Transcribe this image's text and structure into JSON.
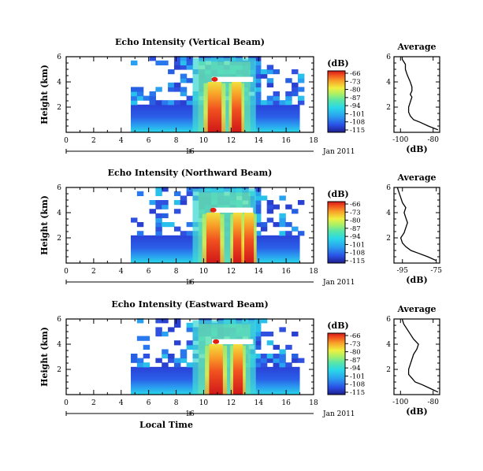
{
  "chart_data": [
    {
      "type": "heatmap",
      "title": "Echo Intensity (Vertical Beam)",
      "ylabel": "Height (km)",
      "x_ticks": [
        0,
        2,
        4,
        6,
        8,
        10,
        12,
        14,
        16,
        18
      ],
      "y_ticks": [
        2,
        4,
        6
      ],
      "xlim": [
        0,
        18
      ],
      "ylim": [
        0,
        6
      ],
      "date_label": "Jan 2011",
      "date_tick": "16",
      "data_xrange": [
        4.7,
        17.0
      ],
      "hot_columns": [
        10.8,
        12.4
      ],
      "colorbar": {
        "unit": "(dB)",
        "ticks": [
          -66,
          -73,
          -80,
          -87,
          -94,
          -101,
          -108,
          -115
        ]
      },
      "average_profile": {
        "title": "Average",
        "xlabel": "(dB)",
        "x_ticks": [
          -100,
          -80
        ],
        "xlim": [
          -104,
          -76
        ],
        "y_ticks": [
          2,
          4,
          6
        ],
        "ylim": [
          0,
          6
        ],
        "profile": [
          [
            0.2,
            -77
          ],
          [
            0.5,
            -83
          ],
          [
            0.8,
            -88
          ],
          [
            1.0,
            -92
          ],
          [
            1.3,
            -94
          ],
          [
            1.6,
            -95
          ],
          [
            2.0,
            -95
          ],
          [
            2.4,
            -94
          ],
          [
            2.8,
            -93
          ],
          [
            3.0,
            -94
          ],
          [
            3.3,
            -93
          ],
          [
            3.6,
            -93
          ],
          [
            4.0,
            -94
          ],
          [
            4.3,
            -95
          ],
          [
            4.6,
            -96
          ],
          [
            5.0,
            -97
          ],
          [
            5.4,
            -97
          ],
          [
            5.8,
            -99
          ],
          [
            6.0,
            -99
          ]
        ]
      }
    },
    {
      "type": "heatmap",
      "title": "Echo Intensity (Northward Beam)",
      "ylabel": "Height (km)",
      "x_ticks": [
        0,
        2,
        4,
        6,
        8,
        10,
        12,
        14,
        16,
        18
      ],
      "y_ticks": [
        2,
        4,
        6
      ],
      "xlim": [
        0,
        18
      ],
      "ylim": [
        0,
        6
      ],
      "date_label": "Jan 2011",
      "date_tick": "16",
      "data_xrange": [
        4.7,
        17.0
      ],
      "hot_columns": [
        10.7,
        12.5,
        13.3
      ],
      "colorbar": {
        "unit": "(dB)",
        "ticks": [
          -66,
          -73,
          -80,
          -87,
          -94,
          -101,
          -108,
          -115
        ]
      },
      "average_profile": {
        "title": "Average",
        "xlabel": "(dB)",
        "x_ticks": [
          -95,
          -75
        ],
        "xlim": [
          -100,
          -73
        ],
        "y_ticks": [
          2,
          4,
          6
        ],
        "ylim": [
          0,
          6
        ],
        "profile": [
          [
            0.2,
            -75
          ],
          [
            0.5,
            -80
          ],
          [
            0.8,
            -86
          ],
          [
            1.0,
            -90
          ],
          [
            1.3,
            -93
          ],
          [
            1.6,
            -95
          ],
          [
            2.0,
            -96
          ],
          [
            2.4,
            -94
          ],
          [
            2.8,
            -93
          ],
          [
            3.2,
            -92
          ],
          [
            3.6,
            -93
          ],
          [
            4.0,
            -94
          ],
          [
            4.4,
            -93
          ],
          [
            4.8,
            -95
          ],
          [
            5.2,
            -96
          ],
          [
            5.6,
            -97
          ],
          [
            6.0,
            -98
          ]
        ]
      }
    },
    {
      "type": "heatmap",
      "title": "Echo Intensity (Eastward Beam)",
      "ylabel": "Height (km)",
      "xlabel": "Local Time",
      "x_ticks": [
        0,
        2,
        4,
        6,
        8,
        10,
        12,
        14,
        16,
        18
      ],
      "y_ticks": [
        2,
        4,
        6
      ],
      "xlim": [
        0,
        18
      ],
      "ylim": [
        0,
        6
      ],
      "date_label": "Jan 2011",
      "date_tick": "16",
      "data_xrange": [
        4.7,
        17.0
      ],
      "hot_columns": [
        10.9,
        12.5
      ],
      "colorbar": {
        "unit": "(dB)",
        "ticks": [
          -66,
          -73,
          -80,
          -87,
          -94,
          -101,
          -108,
          -115
        ]
      },
      "average_profile": {
        "title": "Average",
        "xlabel": "(dB)",
        "x_ticks": [
          -100,
          -80
        ],
        "xlim": [
          -104,
          -76
        ],
        "y_ticks": [
          2,
          4,
          6
        ],
        "ylim": [
          0,
          6
        ],
        "profile": [
          [
            0.2,
            -77
          ],
          [
            0.5,
            -82
          ],
          [
            0.8,
            -87
          ],
          [
            1.0,
            -91
          ],
          [
            1.3,
            -93
          ],
          [
            1.6,
            -95
          ],
          [
            2.0,
            -95
          ],
          [
            2.4,
            -94
          ],
          [
            2.8,
            -93
          ],
          [
            3.2,
            -92
          ],
          [
            3.6,
            -90
          ],
          [
            4.0,
            -89
          ],
          [
            4.4,
            -92
          ],
          [
            4.8,
            -94
          ],
          [
            5.2,
            -96
          ],
          [
            5.6,
            -98
          ],
          [
            6.0,
            -99
          ]
        ]
      }
    }
  ]
}
